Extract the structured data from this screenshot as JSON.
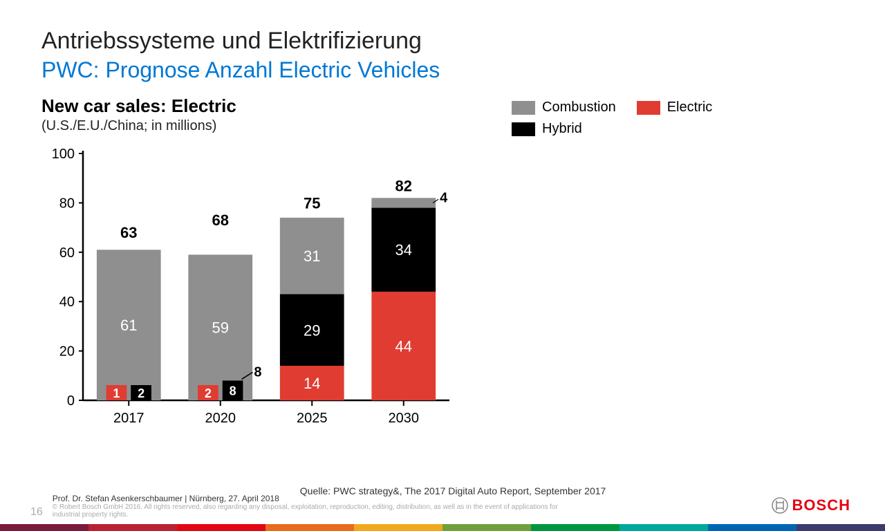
{
  "header": {
    "title": "Antriebssysteme und Elektrifizierung",
    "subtitle": "PWC: Prognose Anzahl Electric Vehicles",
    "subtitle_color": "#0078d4"
  },
  "chart": {
    "title": "New car sales: Electric",
    "subtitle": "(U.S./E.U./China; in millions)",
    "type": "stacked-bar",
    "categories": [
      "2017",
      "2020",
      "2025",
      "2030"
    ],
    "series": [
      {
        "name": "Electric",
        "color": "#e03c31",
        "values": [
          1,
          2,
          14,
          44
        ]
      },
      {
        "name": "Hybrid",
        "color": "#000000",
        "values": [
          2,
          8,
          29,
          34
        ]
      },
      {
        "name": "Combustion",
        "color": "#8f8f8f",
        "values": [
          61,
          59,
          31,
          4
        ]
      }
    ],
    "totals": [
      63,
      68,
      75,
      82
    ],
    "ylim": [
      0,
      100
    ],
    "ytick_step": 20,
    "axis_color": "#000000",
    "tick_label_fontsize": 20,
    "total_label_fontsize": 22,
    "segment_label_fontsize": 22,
    "background_color": "#ffffff",
    "legend": [
      {
        "label": "Combustion",
        "color": "#8f8f8f"
      },
      {
        "label": "Electric",
        "color": "#e03c31"
      },
      {
        "label": "Hybrid",
        "color": "#000000"
      }
    ]
  },
  "footer": {
    "page": "16",
    "author_line": "Prof. Dr. Stefan Asenkerschbaumer | Nürnberg, 27. April 2018",
    "copyright": "© Robert Bosch GmbH 2016. All rights reserved, also regarding any disposal, exploitation, reproduction, editing, distribution, as well as in the event of applications for industrial property rights.",
    "source": "Quelle: PWC strategy&, The 2017 Digital Auto Report, September 2017",
    "logo_text": "BOSCH",
    "logo_color": "#e30613"
  },
  "stripe_colors": [
    "#7b1b3c",
    "#b82232",
    "#e30613",
    "#e86b1e",
    "#f2a81e",
    "#6fa03c",
    "#009640",
    "#00a99d",
    "#0066b3",
    "#3b3b6d"
  ]
}
